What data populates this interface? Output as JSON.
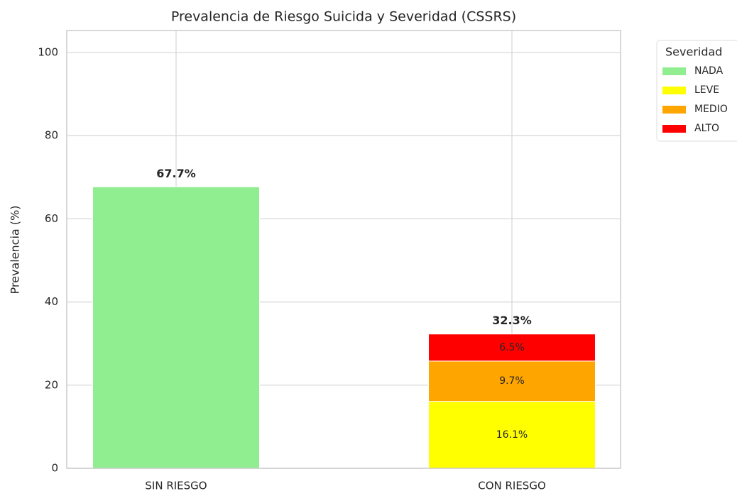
{
  "chart_data": {
    "type": "stacked-bar",
    "title": "Prevalencia de Riesgo Suicida y Severidad (CSSRS)",
    "y_label": "Prevalencia (%)",
    "categories": [
      "SIN RIESGO",
      "CON RIESGO"
    ],
    "series": [
      {
        "name": "NADA",
        "color": "#90ee90",
        "values": [
          67.7,
          0
        ],
        "value_labels": [
          null,
          null
        ]
      },
      {
        "name": "LEVE",
        "color": "#ffff00",
        "values": [
          0,
          16.1
        ],
        "value_labels": [
          null,
          "16.1%"
        ]
      },
      {
        "name": "MEDIO",
        "color": "#ffa500",
        "values": [
          0,
          9.7
        ],
        "value_labels": [
          null,
          "9.7%"
        ]
      },
      {
        "name": "ALTO",
        "color": "#ff0000",
        "values": [
          0,
          6.5
        ],
        "value_labels": [
          null,
          "6.5%"
        ]
      }
    ],
    "totals": [
      67.7,
      32.3
    ],
    "total_labels": [
      "67.7%",
      "32.3%"
    ],
    "legend_title": "Severidad",
    "legend": "upper-right-outside",
    "ylim": [
      0,
      105.3
    ],
    "yticks": [
      0,
      20,
      40,
      60,
      80,
      100
    ],
    "grid": true
  }
}
